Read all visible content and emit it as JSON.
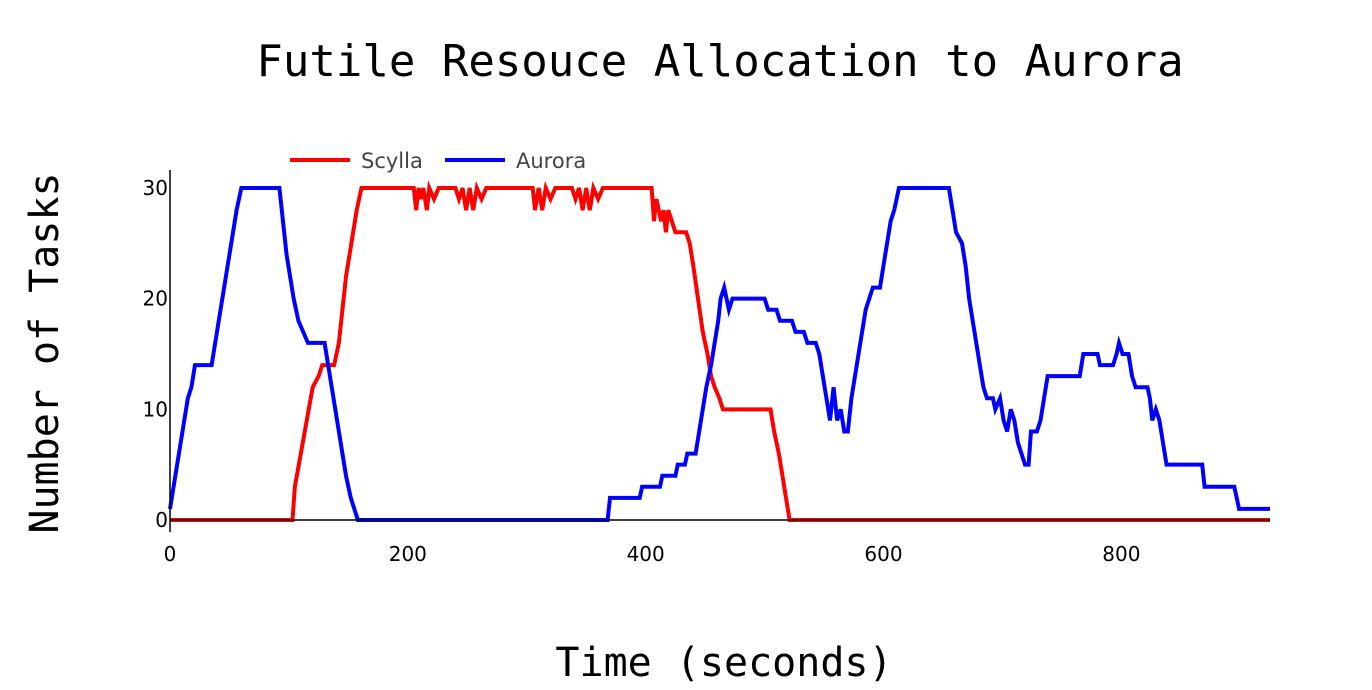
{
  "chart_data": {
    "type": "line",
    "title": "Futile Resouce Allocation to Aurora",
    "xlabel": "Time (seconds)",
    "ylabel": "Number of Tasks",
    "xlim": [
      0,
      925
    ],
    "ylim": [
      0,
      30
    ],
    "xticks": [
      0,
      200,
      400,
      600,
      800
    ],
    "yticks": [
      0,
      10,
      20,
      30
    ],
    "grid": false,
    "legend_position": "top-left",
    "series": [
      {
        "name": "Scylla",
        "color": "#ff0000",
        "points": [
          [
            0,
            0
          ],
          [
            103,
            0
          ],
          [
            105,
            3
          ],
          [
            110,
            6
          ],
          [
            115,
            9
          ],
          [
            120,
            12
          ],
          [
            125,
            13
          ],
          [
            128,
            14
          ],
          [
            138,
            14
          ],
          [
            140,
            15
          ],
          [
            142,
            16
          ],
          [
            145,
            19
          ],
          [
            148,
            22
          ],
          [
            151,
            24
          ],
          [
            154,
            26
          ],
          [
            157,
            28
          ],
          [
            161,
            30
          ],
          [
            205,
            30
          ],
          [
            207,
            28
          ],
          [
            209,
            30
          ],
          [
            211,
            29
          ],
          [
            213,
            30
          ],
          [
            216,
            28
          ],
          [
            218,
            30
          ],
          [
            222,
            29
          ],
          [
            226,
            30
          ],
          [
            240,
            30
          ],
          [
            243,
            29
          ],
          [
            246,
            30
          ],
          [
            249,
            28
          ],
          [
            252,
            30
          ],
          [
            255,
            28
          ],
          [
            258,
            30
          ],
          [
            262,
            29
          ],
          [
            266,
            30
          ],
          [
            305,
            30
          ],
          [
            307,
            28
          ],
          [
            310,
            30
          ],
          [
            313,
            28
          ],
          [
            316,
            30
          ],
          [
            320,
            29
          ],
          [
            324,
            30
          ],
          [
            338,
            30
          ],
          [
            341,
            29
          ],
          [
            344,
            30
          ],
          [
            347,
            28
          ],
          [
            350,
            30
          ],
          [
            353,
            28
          ],
          [
            356,
            30
          ],
          [
            360,
            29
          ],
          [
            364,
            30
          ],
          [
            405,
            30
          ],
          [
            407,
            27
          ],
          [
            409,
            29
          ],
          [
            411,
            28
          ],
          [
            413,
            27
          ],
          [
            415,
            28
          ],
          [
            417,
            26
          ],
          [
            419,
            28
          ],
          [
            422,
            27
          ],
          [
            425,
            26
          ],
          [
            434,
            26
          ],
          [
            437,
            25
          ],
          [
            440,
            23
          ],
          [
            444,
            20
          ],
          [
            448,
            17
          ],
          [
            452,
            15
          ],
          [
            455,
            13
          ],
          [
            458,
            12
          ],
          [
            462,
            11
          ],
          [
            465,
            10
          ],
          [
            505,
            10
          ],
          [
            508,
            8
          ],
          [
            512,
            6
          ],
          [
            515,
            4
          ],
          [
            518,
            2
          ],
          [
            521,
            0
          ],
          [
            925,
            0
          ]
        ]
      },
      {
        "name": "Aurora",
        "color": "#0000ff",
        "points": [
          [
            0,
            1
          ],
          [
            3,
            3
          ],
          [
            6,
            5
          ],
          [
            9,
            7
          ],
          [
            12,
            9
          ],
          [
            15,
            11
          ],
          [
            18,
            12
          ],
          [
            21,
            14
          ],
          [
            35,
            14
          ],
          [
            38,
            16
          ],
          [
            41,
            18
          ],
          [
            44,
            20
          ],
          [
            47,
            22
          ],
          [
            50,
            24
          ],
          [
            53,
            26
          ],
          [
            56,
            28
          ],
          [
            60,
            30
          ],
          [
            92,
            30
          ],
          [
            95,
            27
          ],
          [
            98,
            24
          ],
          [
            101,
            22
          ],
          [
            104,
            20
          ],
          [
            108,
            18
          ],
          [
            112,
            17
          ],
          [
            116,
            16
          ],
          [
            130,
            16
          ],
          [
            133,
            14
          ],
          [
            136,
            12
          ],
          [
            139,
            10
          ],
          [
            142,
            8
          ],
          [
            145,
            6
          ],
          [
            148,
            4
          ],
          [
            152,
            2
          ],
          [
            158,
            0
          ],
          [
            368,
            0
          ],
          [
            370,
            2
          ],
          [
            395,
            2
          ],
          [
            397,
            3
          ],
          [
            412,
            3
          ],
          [
            414,
            4
          ],
          [
            425,
            4
          ],
          [
            427,
            5
          ],
          [
            433,
            5
          ],
          [
            435,
            6
          ],
          [
            442,
            6
          ],
          [
            445,
            8
          ],
          [
            448,
            10
          ],
          [
            451,
            12
          ],
          [
            455,
            14
          ],
          [
            458,
            16
          ],
          [
            461,
            18
          ],
          [
            463,
            20
          ],
          [
            466,
            21
          ],
          [
            470,
            19
          ],
          [
            473,
            20
          ],
          [
            500,
            20
          ],
          [
            503,
            19
          ],
          [
            510,
            19
          ],
          [
            513,
            18
          ],
          [
            523,
            18
          ],
          [
            526,
            17
          ],
          [
            533,
            17
          ],
          [
            536,
            16
          ],
          [
            543,
            16
          ],
          [
            546,
            15
          ],
          [
            549,
            13
          ],
          [
            552,
            11
          ],
          [
            555,
            9
          ],
          [
            558,
            12
          ],
          [
            561,
            9
          ],
          [
            564,
            10
          ],
          [
            567,
            8
          ],
          [
            570,
            8
          ],
          [
            573,
            11
          ],
          [
            576,
            13
          ],
          [
            579,
            15
          ],
          [
            582,
            17
          ],
          [
            585,
            19
          ],
          [
            588,
            20
          ],
          [
            591,
            21
          ],
          [
            597,
            21
          ],
          [
            600,
            23
          ],
          [
            603,
            25
          ],
          [
            606,
            27
          ],
          [
            609,
            28
          ],
          [
            613,
            30
          ],
          [
            655,
            30
          ],
          [
            658,
            28
          ],
          [
            661,
            26
          ],
          [
            666,
            25
          ],
          [
            669,
            23
          ],
          [
            672,
            20
          ],
          [
            675,
            18
          ],
          [
            678,
            16
          ],
          [
            681,
            14
          ],
          [
            684,
            12
          ],
          [
            687,
            11
          ],
          [
            692,
            11
          ],
          [
            694,
            10
          ],
          [
            698,
            11
          ],
          [
            701,
            9
          ],
          [
            704,
            8
          ],
          [
            707,
            10
          ],
          [
            710,
            9
          ],
          [
            713,
            7
          ],
          [
            716,
            6
          ],
          [
            719,
            5
          ],
          [
            722,
            5
          ],
          [
            724,
            8
          ],
          [
            729,
            8
          ],
          [
            732,
            9
          ],
          [
            735,
            11
          ],
          [
            738,
            13
          ],
          [
            765,
            13
          ],
          [
            768,
            15
          ],
          [
            780,
            15
          ],
          [
            782,
            14
          ],
          [
            793,
            14
          ],
          [
            796,
            15
          ],
          [
            798,
            16
          ],
          [
            801,
            15
          ],
          [
            806,
            15
          ],
          [
            809,
            13
          ],
          [
            812,
            12
          ],
          [
            822,
            12
          ],
          [
            824,
            11
          ],
          [
            826,
            9
          ],
          [
            829,
            10
          ],
          [
            832,
            9
          ],
          [
            835,
            7
          ],
          [
            838,
            5
          ],
          [
            868,
            5
          ],
          [
            870,
            3
          ],
          [
            895,
            3
          ],
          [
            897,
            2
          ],
          [
            899,
            1
          ],
          [
            925,
            1
          ]
        ]
      }
    ]
  }
}
